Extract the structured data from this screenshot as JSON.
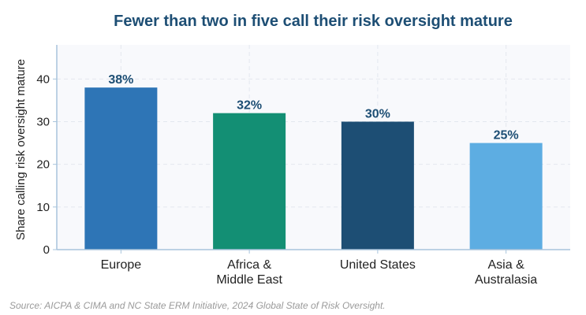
{
  "chart_data": {
    "type": "bar",
    "title": "Fewer than two in five call their risk oversight mature",
    "ylabel": "Share calling risk oversight mature",
    "xlabel": "",
    "categories": [
      [
        "Europe"
      ],
      [
        "Africa &",
        "Middle East"
      ],
      [
        "United States"
      ],
      [
        "Asia &",
        "Australasia"
      ]
    ],
    "values": [
      38,
      32,
      30,
      25
    ],
    "value_labels": [
      "38%",
      "32%",
      "30%",
      "25%"
    ],
    "bar_colors": [
      "#2e75b6",
      "#138f74",
      "#1d4e74",
      "#5dade2"
    ],
    "ylim": [
      0,
      48
    ],
    "yticks": [
      0,
      10,
      20,
      30,
      40
    ],
    "grid": true,
    "source": "Source: AICPA & CIMA and NC State ERM Initiative, 2024 Global State of Risk Oversight."
  },
  "colors": {
    "title": "#1d4e74",
    "data_label": "#1d4e74",
    "axis": "#a8c4dc",
    "grid": "#e3e8ee",
    "plot_bg": "#f8f9fc",
    "text": "#222222",
    "source": "#9a9a9a"
  }
}
